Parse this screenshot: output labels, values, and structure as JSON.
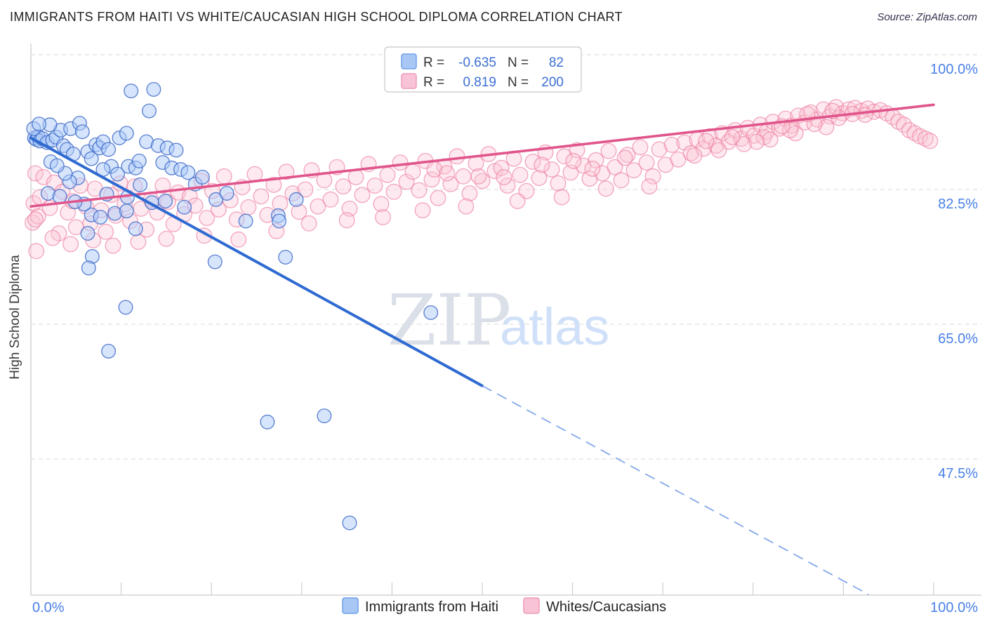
{
  "header": {
    "title": "IMMIGRANTS FROM HAITI VS WHITE/CAUCASIAN HIGH SCHOOL DIPLOMA CORRELATION CHART",
    "source": "Source: ZipAtlas.com"
  },
  "watermark": {
    "zip": "ZIP",
    "atlas": "atlas"
  },
  "stats_box": {
    "rows": [
      {
        "r_label": "R =",
        "r_value": "-0.635",
        "n_label": "N =",
        "n_value": "82"
      },
      {
        "r_label": "R =",
        "r_value": "0.819",
        "n_label": "N =",
        "n_value": "200"
      }
    ]
  },
  "axes": {
    "y": {
      "title": "High School Diploma",
      "ticks": [
        {
          "value": 100.0,
          "label": "100.0%"
        },
        {
          "value": 82.5,
          "label": "82.5%"
        },
        {
          "value": 65.0,
          "label": "65.0%"
        },
        {
          "value": 47.5,
          "label": "47.5%"
        }
      ]
    },
    "x": {
      "min_label": "0.0%",
      "max_label": "100.0%"
    }
  },
  "legend": [
    {
      "label": "Immigrants from Haiti",
      "fill": "#a9c7f5",
      "border": "#6fa0ea"
    },
    {
      "label": "Whites/Caucasians",
      "fill": "#f8c3d6",
      "border": "#ee9bb8"
    }
  ],
  "colors": {
    "tick_label": "#4a80e8",
    "grid": "#d9d9d9",
    "axis": "#c9c9c9",
    "blue_line": "#2e6ad1",
    "blue_dash": "#7da3e8",
    "pink_line": "#e0558b",
    "blue_point_fill": "rgba(173,203,250,0.50)",
    "blue_point_stroke": "rgba(60,105,200,0.80)",
    "pink_point_fill": "rgba(249,196,214,0.38)",
    "pink_point_stroke": "rgba(238,121,158,0.62)"
  },
  "chart_data": {
    "type": "scatter",
    "title": "Immigrants from Haiti vs White/Caucasian High School Diploma",
    "xlabel": "Immigrants from Haiti (%)",
    "ylabel": "High School Diploma",
    "x_range": [
      0,
      100
    ],
    "y_tick_values": [
      100.0,
      82.5,
      65.0,
      47.5
    ],
    "x_tick_values": [
      0,
      10,
      20,
      30,
      40,
      50,
      60,
      70,
      80,
      90,
      100
    ],
    "grid": true,
    "legend_position": "bottom",
    "series": [
      {
        "name": "Immigrants from Haiti",
        "R": -0.635,
        "N": 82,
        "radius": 9.8,
        "trend": {
          "x0": 0,
          "y0": 89.2,
          "x1": 50.0,
          "y1": 57.0,
          "dash_x1": 92.8,
          "dash_y1": 29.9
        },
        "points": [
          [
            0.4,
            89.2
          ],
          [
            0.6,
            89.0
          ],
          [
            0.8,
            89.4
          ],
          [
            1.0,
            88.8
          ],
          [
            1.3,
            89.1
          ],
          [
            0.3,
            90.4
          ],
          [
            1.8,
            88.6
          ],
          [
            2.4,
            88.9
          ],
          [
            2.8,
            89.3
          ],
          [
            3.3,
            90.2
          ],
          [
            3.6,
            88.2
          ],
          [
            4.0,
            87.7
          ],
          [
            4.4,
            90.4
          ],
          [
            4.7,
            87.1
          ],
          [
            5.4,
            91.1
          ],
          [
            5.7,
            90.0
          ],
          [
            6.3,
            87.4
          ],
          [
            1.9,
            82.0
          ],
          [
            3.2,
            81.6
          ],
          [
            2.2,
            86.1
          ],
          [
            6.7,
            86.5
          ],
          [
            7.2,
            88.3
          ],
          [
            7.6,
            87.9
          ],
          [
            8.0,
            88.7
          ],
          [
            8.6,
            87.7
          ],
          [
            9.8,
            89.2
          ],
          [
            10.6,
            89.8
          ],
          [
            11.1,
            95.3
          ],
          [
            13.6,
            95.5
          ],
          [
            13.1,
            92.7
          ],
          [
            12.8,
            88.7
          ],
          [
            14.1,
            88.2
          ],
          [
            8.9,
            85.5
          ],
          [
            8.0,
            85.1
          ],
          [
            9.6,
            84.5
          ],
          [
            10.8,
            85.5
          ],
          [
            11.6,
            85.3
          ],
          [
            12.0,
            86.2
          ],
          [
            14.6,
            86.0
          ],
          [
            15.6,
            85.3
          ],
          [
            16.6,
            85.1
          ],
          [
            12.1,
            83.1
          ],
          [
            8.4,
            81.9
          ],
          [
            10.7,
            81.5
          ],
          [
            6.7,
            79.2
          ],
          [
            7.7,
            78.9
          ],
          [
            9.3,
            79.4
          ],
          [
            10.6,
            79.7
          ],
          [
            11.6,
            77.4
          ],
          [
            6.3,
            76.8
          ],
          [
            6.8,
            73.8
          ],
          [
            6.4,
            72.3
          ],
          [
            5.2,
            84.0
          ],
          [
            4.3,
            83.5
          ],
          [
            3.8,
            84.6
          ],
          [
            2.9,
            85.6
          ],
          [
            15.1,
            87.9
          ],
          [
            16.1,
            87.6
          ],
          [
            17.4,
            84.7
          ],
          [
            18.2,
            83.2
          ],
          [
            19.0,
            84.1
          ],
          [
            20.5,
            81.2
          ],
          [
            21.7,
            82.0
          ],
          [
            23.8,
            78.4
          ],
          [
            27.4,
            79.1
          ],
          [
            27.5,
            78.4
          ],
          [
            29.4,
            81.2
          ],
          [
            20.4,
            73.1
          ],
          [
            28.2,
            73.7
          ],
          [
            13.4,
            80.8
          ],
          [
            14.9,
            81.0
          ],
          [
            17.0,
            80.2
          ],
          [
            5.9,
            80.6
          ],
          [
            4.9,
            80.9
          ],
          [
            10.5,
            67.2
          ],
          [
            8.6,
            61.5
          ],
          [
            44.3,
            66.5
          ],
          [
            26.2,
            52.3
          ],
          [
            32.5,
            53.1
          ],
          [
            35.3,
            39.2
          ],
          [
            2.1,
            90.9
          ],
          [
            0.9,
            91.0
          ]
        ]
      },
      {
        "name": "Whites/Caucasians",
        "R": 0.819,
        "N": 200,
        "radius": 10.8,
        "trend": {
          "x0": 0,
          "y0": 80.3,
          "x1": 100,
          "y1": 93.5
        },
        "points": [
          [
            0.3,
            80.7
          ],
          [
            0.5,
            84.6
          ],
          [
            0.6,
            74.5
          ],
          [
            0.2,
            78.2
          ],
          [
            1.4,
            84.1
          ],
          [
            0.8,
            79.0
          ],
          [
            0.5,
            78.6
          ],
          [
            1.0,
            81.5
          ],
          [
            2.1,
            80.1
          ],
          [
            2.6,
            83.4
          ],
          [
            3.1,
            76.8
          ],
          [
            2.4,
            76.2
          ],
          [
            3.5,
            82.2
          ],
          [
            4.1,
            79.5
          ],
          [
            4.6,
            81.0
          ],
          [
            5.0,
            77.6
          ],
          [
            5.5,
            83.0
          ],
          [
            6.1,
            80.3
          ],
          [
            6.6,
            78.1
          ],
          [
            7.1,
            82.6
          ],
          [
            7.8,
            79.8
          ],
          [
            8.3,
            77.0
          ],
          [
            8.9,
            81.8
          ],
          [
            9.4,
            79.1
          ],
          [
            9.9,
            83.3
          ],
          [
            4.4,
            75.4
          ],
          [
            6.9,
            75.9
          ],
          [
            9.1,
            75.2
          ],
          [
            10.4,
            80.6
          ],
          [
            11.0,
            78.4
          ],
          [
            11.5,
            82.9
          ],
          [
            12.2,
            80.0
          ],
          [
            12.8,
            77.3
          ],
          [
            13.3,
            81.2
          ],
          [
            14.0,
            79.5
          ],
          [
            14.6,
            83.0
          ],
          [
            15.2,
            80.9
          ],
          [
            15.8,
            78.0
          ],
          [
            16.3,
            82.1
          ],
          [
            17.0,
            79.3
          ],
          [
            17.6,
            81.6
          ],
          [
            11.9,
            75.7
          ],
          [
            15.0,
            76.1
          ],
          [
            18.2,
            80.4
          ],
          [
            18.9,
            83.6
          ],
          [
            19.5,
            78.8
          ],
          [
            20.1,
            82.3
          ],
          [
            20.8,
            79.9
          ],
          [
            21.4,
            84.2
          ],
          [
            22.1,
            81.1
          ],
          [
            22.8,
            78.6
          ],
          [
            23.4,
            82.8
          ],
          [
            24.1,
            80.2
          ],
          [
            24.8,
            84.5
          ],
          [
            25.5,
            81.6
          ],
          [
            26.2,
            79.2
          ],
          [
            26.9,
            83.1
          ],
          [
            27.6,
            80.7
          ],
          [
            28.3,
            84.8
          ],
          [
            29.0,
            82.0
          ],
          [
            29.7,
            79.6
          ],
          [
            19.2,
            76.5
          ],
          [
            23.0,
            76.0
          ],
          [
            27.2,
            77.1
          ],
          [
            30.4,
            82.5
          ],
          [
            31.1,
            85.0
          ],
          [
            31.8,
            80.3
          ],
          [
            32.5,
            83.7
          ],
          [
            33.2,
            81.2
          ],
          [
            33.9,
            85.4
          ],
          [
            34.6,
            82.9
          ],
          [
            35.3,
            80.0
          ],
          [
            36.0,
            84.1
          ],
          [
            36.7,
            81.8
          ],
          [
            37.4,
            85.8
          ],
          [
            38.1,
            83.0
          ],
          [
            38.8,
            80.6
          ],
          [
            39.5,
            84.4
          ],
          [
            40.2,
            82.2
          ],
          [
            40.9,
            86.0
          ],
          [
            41.6,
            83.5
          ],
          [
            30.8,
            78.1
          ],
          [
            35.0,
            78.5
          ],
          [
            39.0,
            78.9
          ],
          [
            42.3,
            84.8
          ],
          [
            43.0,
            82.4
          ],
          [
            43.7,
            86.2
          ],
          [
            44.4,
            83.8
          ],
          [
            45.1,
            81.4
          ],
          [
            45.8,
            85.5
          ],
          [
            46.5,
            83.2
          ],
          [
            47.2,
            86.8
          ],
          [
            47.9,
            84.2
          ],
          [
            48.6,
            82.0
          ],
          [
            49.3,
            85.9
          ],
          [
            50.0,
            83.6
          ],
          [
            50.7,
            87.1
          ],
          [
            51.4,
            84.9
          ],
          [
            43.4,
            79.8
          ],
          [
            48.2,
            80.3
          ],
          [
            52.1,
            85.3
          ],
          [
            52.8,
            83.0
          ],
          [
            53.5,
            86.5
          ],
          [
            54.2,
            84.4
          ],
          [
            54.9,
            82.3
          ],
          [
            55.6,
            86.1
          ],
          [
            56.3,
            84.0
          ],
          [
            57.0,
            87.3
          ],
          [
            57.7,
            85.1
          ],
          [
            58.4,
            83.3
          ],
          [
            59.1,
            86.8
          ],
          [
            59.8,
            84.7
          ],
          [
            60.5,
            87.6
          ],
          [
            61.2,
            85.6
          ],
          [
            53.9,
            81.0
          ],
          [
            58.8,
            81.5
          ],
          [
            61.9,
            83.9
          ],
          [
            62.6,
            86.3
          ],
          [
            63.3,
            84.6
          ],
          [
            64.0,
            87.5
          ],
          [
            64.7,
            85.4
          ],
          [
            65.4,
            83.7
          ],
          [
            66.1,
            87.0
          ],
          [
            66.8,
            85.0
          ],
          [
            67.5,
            88.0
          ],
          [
            68.2,
            86.0
          ],
          [
            68.9,
            84.2
          ],
          [
            69.6,
            87.7
          ],
          [
            70.3,
            85.7
          ],
          [
            71.0,
            88.3
          ],
          [
            71.7,
            86.4
          ],
          [
            63.7,
            82.6
          ],
          [
            68.5,
            82.9
          ],
          [
            72.4,
            88.6
          ],
          [
            73.1,
            87.2
          ],
          [
            73.8,
            89.0
          ],
          [
            74.5,
            87.8
          ],
          [
            75.2,
            89.4
          ],
          [
            75.9,
            88.2
          ],
          [
            76.6,
            89.8
          ],
          [
            77.3,
            88.7
          ],
          [
            78.0,
            90.2
          ],
          [
            78.7,
            89.1
          ],
          [
            79.4,
            90.5
          ],
          [
            80.1,
            89.5
          ],
          [
            80.8,
            90.9
          ],
          [
            81.5,
            90.0
          ],
          [
            82.2,
            91.3
          ],
          [
            82.9,
            90.4
          ],
          [
            83.6,
            91.7
          ],
          [
            84.3,
            90.8
          ],
          [
            85.0,
            92.1
          ],
          [
            85.7,
            91.2
          ],
          [
            86.4,
            92.5
          ],
          [
            87.1,
            91.6
          ],
          [
            87.8,
            92.9
          ],
          [
            88.5,
            92.0
          ],
          [
            89.2,
            93.2
          ],
          [
            89.9,
            92.4
          ],
          [
            81.2,
            89.3
          ],
          [
            84.7,
            89.8
          ],
          [
            88.1,
            90.6
          ],
          [
            90.6,
            92.9
          ],
          [
            91.3,
            93.1
          ],
          [
            92.0,
            92.7
          ],
          [
            92.7,
            93.0
          ],
          [
            93.4,
            92.6
          ],
          [
            94.1,
            92.8
          ],
          [
            94.8,
            92.4
          ],
          [
            95.5,
            91.9
          ],
          [
            96.1,
            91.3
          ],
          [
            96.7,
            90.9
          ],
          [
            97.3,
            90.2
          ],
          [
            97.9,
            89.8
          ],
          [
            98.5,
            89.4
          ],
          [
            99.1,
            89.1
          ],
          [
            99.6,
            88.8
          ],
          [
            73.5,
            86.9
          ],
          [
            76.2,
            87.6
          ],
          [
            79.0,
            88.4
          ],
          [
            81.9,
            89.0
          ],
          [
            84.1,
            90.2
          ],
          [
            86.8,
            91.0
          ],
          [
            89.5,
            91.8
          ],
          [
            92.4,
            92.2
          ],
          [
            74.8,
            88.8
          ],
          [
            77.7,
            89.3
          ],
          [
            80.4,
            88.7
          ],
          [
            83.2,
            90.7
          ],
          [
            86.0,
            92.3
          ],
          [
            88.8,
            92.7
          ],
          [
            91.0,
            92.3
          ],
          [
            44.7,
            85.1
          ],
          [
            46.1,
            84.6
          ],
          [
            49.6,
            84.2
          ],
          [
            52.4,
            84.1
          ],
          [
            56.6,
            85.7
          ],
          [
            60.1,
            86.2
          ],
          [
            62.2,
            85.2
          ],
          [
            65.8,
            86.6
          ]
        ]
      }
    ]
  }
}
